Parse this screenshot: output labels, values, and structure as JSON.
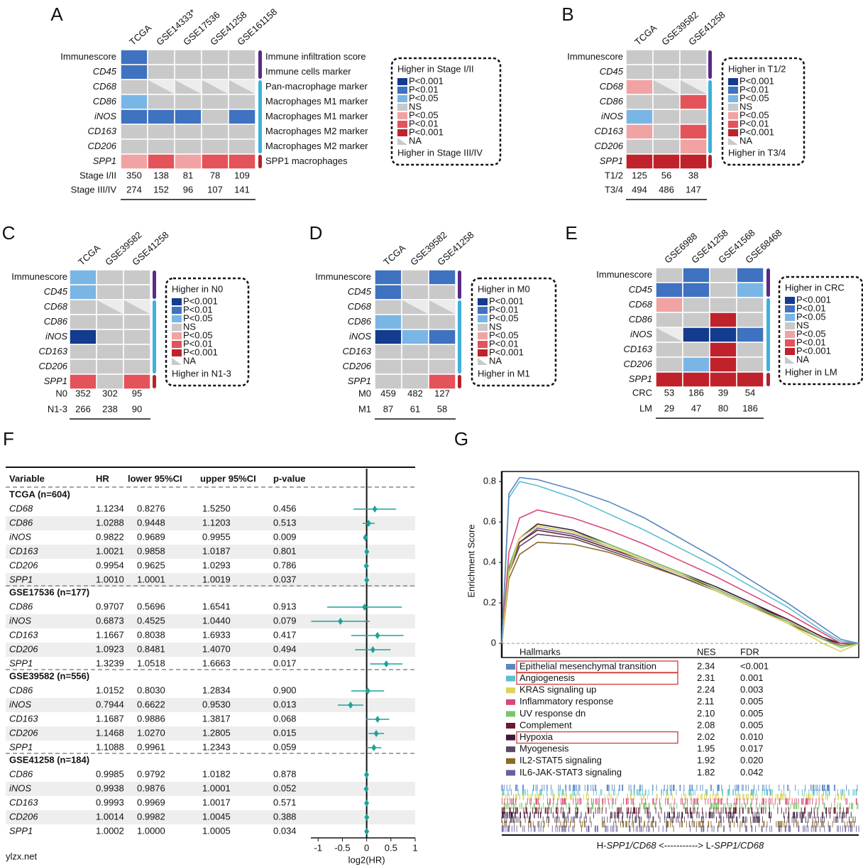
{
  "levels": [
    {
      "label": "P<0.001",
      "color": "#133b8e"
    },
    {
      "label": "P<0.01",
      "color": "#3f72c0"
    },
    {
      "label": "P<0.05",
      "color": "#79b6e6"
    },
    {
      "label": "NS",
      "color": "#c9c9c9"
    },
    {
      "label": "P<0.05",
      "color": "#f1a3a3"
    },
    {
      "label": "P<0.01",
      "color": "#e4525a"
    },
    {
      "label": "P<0.001",
      "color": "#c0222b"
    },
    {
      "label": "NA",
      "color": "#c9c9c9",
      "triangle": true
    }
  ],
  "heatmaps": [
    {
      "letter": "A",
      "columns": [
        "TCGA",
        "GSE14333*",
        "GSE17536",
        "GSE41258",
        "GSE161158"
      ],
      "rows": [
        {
          "label": "Immunescore",
          "italic": false
        },
        {
          "label": "CD45"
        },
        {
          "label": "CD68"
        },
        {
          "label": "CD86"
        },
        {
          "label": "iNOS",
          "color": "#1f4e9a"
        },
        {
          "label": "CD163"
        },
        {
          "label": "CD206"
        },
        {
          "label": "SPP1",
          "color": "#b5222a"
        }
      ],
      "cells": [
        [
          1,
          3,
          3,
          3,
          3
        ],
        [
          1,
          3,
          3,
          3,
          3
        ],
        [
          3,
          7,
          7,
          7,
          7
        ],
        [
          2,
          3,
          3,
          3,
          3
        ],
        [
          1,
          1,
          1,
          3,
          1
        ],
        [
          3,
          3,
          3,
          3,
          3
        ],
        [
          3,
          3,
          3,
          3,
          3
        ],
        [
          4,
          5,
          4,
          5,
          5
        ]
      ],
      "annotations": [
        {
          "text": "Immune infiltration score"
        },
        {
          "text": "Immune cells marker"
        },
        {
          "text": "Pan-macrophage marker"
        },
        {
          "text": "Macrophages M1 marker"
        },
        {
          "text": "Macrophages M1 marker",
          "color": "#1f4e9a"
        },
        {
          "text": "Macrophages M2 marker"
        },
        {
          "text": "Macrophages M2 marker"
        },
        {
          "text": "SPP1 macrophages",
          "color": "#b5222a"
        }
      ],
      "legend_top": "Higher in Stage I/II",
      "legend_bottom": "Higher in Stage III/IV",
      "groups": [
        {
          "label": "Stage I/II",
          "color": "#1f4e9a",
          "counts": [
            350,
            138,
            81,
            78,
            109
          ]
        },
        {
          "label": "Stage III/IV",
          "color": "#b5222a",
          "counts": [
            274,
            152,
            96,
            107,
            141
          ]
        }
      ]
    },
    {
      "letter": "B",
      "columns": [
        "TCGA",
        "GSE39582",
        "GSE41258"
      ],
      "rows": [
        {
          "label": "Immunescore",
          "italic": false
        },
        {
          "label": "CD45"
        },
        {
          "label": "CD68",
          "color": "#b5222a"
        },
        {
          "label": "CD86"
        },
        {
          "label": "iNOS"
        },
        {
          "label": "CD163",
          "color": "#b5222a"
        },
        {
          "label": "CD206"
        },
        {
          "label": "SPP1",
          "color": "#b5222a"
        }
      ],
      "cells": [
        [
          3,
          3,
          3
        ],
        [
          3,
          3,
          3
        ],
        [
          4,
          7,
          7
        ],
        [
          3,
          3,
          5
        ],
        [
          2,
          3,
          3
        ],
        [
          4,
          3,
          5
        ],
        [
          3,
          3,
          4
        ],
        [
          6,
          6,
          6
        ]
      ],
      "legend_top": "Higher in T1/2",
      "legend_bottom": "Higher in T3/4",
      "groups": [
        {
          "label": "T1/2",
          "color": "#1f4e9a",
          "counts": [
            125,
            56,
            38
          ]
        },
        {
          "label": "T3/4",
          "color": "#b5222a",
          "counts": [
            494,
            486,
            147
          ]
        }
      ]
    },
    {
      "letter": "C",
      "columns": [
        "TCGA",
        "GSE39582",
        "GSE41258"
      ],
      "rows": [
        {
          "label": "Immunescore",
          "italic": false
        },
        {
          "label": "CD45"
        },
        {
          "label": "CD68"
        },
        {
          "label": "CD86"
        },
        {
          "label": "iNOS"
        },
        {
          "label": "CD163"
        },
        {
          "label": "CD206"
        },
        {
          "label": "SPP1",
          "color": "#b5222a"
        }
      ],
      "cells": [
        [
          2,
          3,
          3
        ],
        [
          2,
          3,
          3
        ],
        [
          3,
          7,
          7
        ],
        [
          3,
          3,
          3
        ],
        [
          0,
          3,
          3
        ],
        [
          3,
          3,
          3
        ],
        [
          3,
          3,
          3
        ],
        [
          5,
          3,
          5
        ]
      ],
      "legend_top": "Higher in N0",
      "legend_bottom": "Higher in N1-3",
      "groups": [
        {
          "label": "N0",
          "color": "#1f4e9a",
          "counts": [
            352,
            302,
            95
          ]
        },
        {
          "label": "N1-3",
          "color": "#b5222a",
          "counts": [
            266,
            238,
            90
          ]
        }
      ]
    },
    {
      "letter": "D",
      "columns": [
        "TCGA",
        "GSE39582",
        "GSE41258"
      ],
      "rows": [
        {
          "label": "Immunescore",
          "italic": false,
          "color": "#1f4e9a"
        },
        {
          "label": "CD45"
        },
        {
          "label": "CD68"
        },
        {
          "label": "CD86"
        },
        {
          "label": "iNOS",
          "color": "#1f4e9a"
        },
        {
          "label": "CD163"
        },
        {
          "label": "CD206"
        },
        {
          "label": "SPP1"
        }
      ],
      "cells": [
        [
          1,
          3,
          1
        ],
        [
          1,
          3,
          3
        ],
        [
          3,
          7,
          7
        ],
        [
          2,
          3,
          3
        ],
        [
          0,
          2,
          1
        ],
        [
          3,
          3,
          3
        ],
        [
          3,
          3,
          3
        ],
        [
          3,
          3,
          5
        ]
      ],
      "legend_top": "Higher in M0",
      "legend_bottom": "Higher in M1",
      "groups": [
        {
          "label": "M0",
          "color": "#1f4e9a",
          "counts": [
            459,
            482,
            127
          ]
        },
        {
          "label": "M1",
          "color": "#b5222a",
          "counts": [
            87,
            61,
            58
          ]
        }
      ]
    },
    {
      "letter": "E",
      "columns": [
        "GSE6988",
        "GSE41258",
        "GSE41568",
        "GSE68468"
      ],
      "rows": [
        {
          "label": "Immunescore",
          "italic": false
        },
        {
          "label": "CD45",
          "color": "#1f4e9a"
        },
        {
          "label": "CD68"
        },
        {
          "label": "CD86"
        },
        {
          "label": "iNOS"
        },
        {
          "label": "CD163"
        },
        {
          "label": "CD206"
        },
        {
          "label": "SPP1",
          "color": "#b5222a"
        }
      ],
      "cells": [
        [
          3,
          1,
          3,
          1
        ],
        [
          1,
          1,
          3,
          2
        ],
        [
          4,
          3,
          3,
          3
        ],
        [
          3,
          3,
          6,
          3
        ],
        [
          7,
          0,
          0,
          1
        ],
        [
          3,
          3,
          6,
          3
        ],
        [
          3,
          2,
          6,
          3
        ],
        [
          6,
          6,
          6,
          6
        ]
      ],
      "legend_top": "Higher in CRC",
      "legend_bottom": "Higher in LM",
      "groups": [
        {
          "label": "CRC",
          "color": "#1f4e9a",
          "counts": [
            53,
            186,
            39,
            54
          ]
        },
        {
          "label": "LM",
          "color": "#b5222a",
          "counts": [
            29,
            47,
            80,
            186
          ]
        }
      ]
    }
  ],
  "forest": {
    "letter": "F",
    "headers": [
      "Variable",
      "HR",
      "lower 95%CI",
      "upper 95%CI",
      "p-value"
    ],
    "color": "#1aa39a",
    "groups": [
      {
        "name": "TCGA (n=604)",
        "rows": [
          {
            "variable": "CD68",
            "hr": "1.1234",
            "lower": "0.8276",
            "upper": "1.5250",
            "p": "0.456"
          },
          {
            "variable": "CD86",
            "hr": "1.0288",
            "lower": "0.9448",
            "upper": "1.1203",
            "p": "0.513"
          },
          {
            "variable": "iNOS",
            "color": "#1f4e9a",
            "hr": "0.9822",
            "lower": "0.9689",
            "upper": "0.9955",
            "p": "0.009"
          },
          {
            "variable": "CD163",
            "hr": "1.0021",
            "lower": "0.9858",
            "upper": "1.0187",
            "p": "0.801"
          },
          {
            "variable": "CD206",
            "hr": "0.9954",
            "lower": "0.9625",
            "upper": "1.0293",
            "p": "0.786"
          },
          {
            "variable": "SPP1",
            "color": "#b5222a",
            "hr": "1.0010",
            "lower": "1.0001",
            "upper": "1.0019",
            "p": "0.037"
          }
        ]
      },
      {
        "name": "GSE17536 (n=177)",
        "rows": [
          {
            "variable": "CD86",
            "hr": "0.9707",
            "lower": "0.5696",
            "upper": "1.6541",
            "p": "0.913"
          },
          {
            "variable": "iNOS",
            "hr": "0.6873",
            "lower": "0.4525",
            "upper": "1.0440",
            "p": "0.079"
          },
          {
            "variable": "CD163",
            "hr": "1.1667",
            "lower": "0.8038",
            "upper": "1.6933",
            "p": "0.417"
          },
          {
            "variable": "CD206",
            "hr": "1.0923",
            "lower": "0.8481",
            "upper": "1.4070",
            "p": "0.494"
          },
          {
            "variable": "SPP1",
            "color": "#b5222a",
            "hr": "1.3239",
            "lower": "1.0518",
            "upper": "1.6663",
            "p": "0.017"
          }
        ]
      },
      {
        "name": "GSE39582 (n=556)",
        "rows": [
          {
            "variable": "CD86",
            "hr": "1.0152",
            "lower": "0.8030",
            "upper": "1.2834",
            "p": "0.900"
          },
          {
            "variable": "iNOS",
            "color": "#1f4e9a",
            "hr": "0.7944",
            "lower": "0.6622",
            "upper": "0.9530",
            "p": "0.013"
          },
          {
            "variable": "CD163",
            "hr": "1.1687",
            "lower": "0.9886",
            "upper": "1.3817",
            "p": "0.068"
          },
          {
            "variable": "CD206",
            "color": "#b5222a",
            "hr": "1.1468",
            "lower": "1.0270",
            "upper": "1.2805",
            "p": "0.015"
          },
          {
            "variable": "SPP1",
            "hr": "1.1088",
            "lower": "0.9961",
            "upper": "1.2343",
            "p": "0.059"
          }
        ]
      },
      {
        "name": "GSE41258 (n=184)",
        "rows": [
          {
            "variable": "CD86",
            "hr": "0.9985",
            "lower": "0.9792",
            "upper": "1.0182",
            "p": "0.878"
          },
          {
            "variable": "iNOS",
            "hr": "0.9938",
            "lower": "0.9876",
            "upper": "1.0001",
            "p": "0.052"
          },
          {
            "variable": "CD163",
            "hr": "0.9993",
            "lower": "0.9969",
            "upper": "1.0017",
            "p": "0.571"
          },
          {
            "variable": "CD206",
            "hr": "1.0014",
            "lower": "0.9982",
            "upper": "1.0045",
            "p": "0.388"
          },
          {
            "variable": "SPP1",
            "color": "#b5222a",
            "hr": "1.0002",
            "lower": "1.0000",
            "upper": "1.0005",
            "p": "0.034"
          }
        ]
      }
    ],
    "xlabel": "log2(HR)",
    "xlim": [
      -1.15,
      1
    ],
    "xticks": [
      -1,
      -0.5,
      0,
      0.5,
      1
    ]
  },
  "gsea": {
    "letter": "G",
    "type": "line",
    "ylabel": "Enrichment Score",
    "ylim": [
      -0.07,
      0.85
    ],
    "yticks": [
      0.0,
      0.2,
      0.4,
      0.6,
      0.8
    ],
    "x": [
      0,
      0.02,
      0.05,
      0.1,
      0.2,
      0.3,
      0.4,
      0.5,
      0.6,
      0.7,
      0.8,
      0.9,
      0.95,
      1
    ],
    "headers": [
      "Hallmarks",
      "NES",
      "FDR"
    ],
    "series": [
      {
        "name": "Epithelial mesenchymal transition",
        "color": "#5b87c3",
        "nes": "2.34",
        "fdr": "<0.001",
        "boxed": true,
        "values": [
          0,
          0.74,
          0.82,
          0.81,
          0.76,
          0.7,
          0.62,
          0.52,
          0.42,
          0.31,
          0.2,
          0.08,
          0.02,
          0
        ]
      },
      {
        "name": "Angiogenesis",
        "color": "#5bc0d0",
        "nes": "2.31",
        "fdr": "0.001",
        "boxed": true,
        "values": [
          0,
          0.72,
          0.8,
          0.78,
          0.72,
          0.64,
          0.56,
          0.47,
          0.38,
          0.28,
          0.18,
          0.06,
          0.01,
          0
        ]
      },
      {
        "name": "KRAS signaling up",
        "color": "#d9d45a",
        "nes": "2.24",
        "fdr": "0.003",
        "values": [
          0,
          0.35,
          0.52,
          0.58,
          0.55,
          0.48,
          0.41,
          0.34,
          0.26,
          0.18,
          0.1,
          0,
          -0.04,
          0
        ]
      },
      {
        "name": "Inflammatory response",
        "color": "#d8477a",
        "nes": "2.11",
        "fdr": "0.005",
        "values": [
          0,
          0.45,
          0.62,
          0.66,
          0.62,
          0.56,
          0.49,
          0.41,
          0.33,
          0.24,
          0.15,
          0.05,
          0,
          0
        ]
      },
      {
        "name": "UV response dn",
        "color": "#7cc46a",
        "nes": "2.10",
        "fdr": "0.005",
        "values": [
          0,
          0.38,
          0.52,
          0.58,
          0.55,
          0.49,
          0.42,
          0.35,
          0.27,
          0.19,
          0.11,
          0.02,
          -0.02,
          0
        ]
      },
      {
        "name": "Complement",
        "color": "#6b1b2e",
        "nes": "2.08",
        "fdr": "0.005",
        "values": [
          0,
          0.36,
          0.5,
          0.56,
          0.53,
          0.47,
          0.41,
          0.34,
          0.27,
          0.19,
          0.12,
          0.03,
          0,
          0
        ]
      },
      {
        "name": "Hypoxia",
        "color": "#3b1a3a",
        "nes": "2.02",
        "fdr": "0.010",
        "boxed": true,
        "values": [
          0,
          0.38,
          0.52,
          0.59,
          0.56,
          0.49,
          0.42,
          0.35,
          0.28,
          0.2,
          0.12,
          0.03,
          0,
          0
        ]
      },
      {
        "name": "Myogenesis",
        "color": "#5a4a64",
        "nes": "1.95",
        "fdr": "0.017",
        "values": [
          0,
          0.35,
          0.48,
          0.54,
          0.52,
          0.46,
          0.4,
          0.33,
          0.26,
          0.18,
          0.11,
          0.02,
          0,
          0
        ]
      },
      {
        "name": "IL2-STAT5 signaling",
        "color": "#8c6a2a",
        "nes": "1.92",
        "fdr": "0.020",
        "values": [
          0,
          0.32,
          0.44,
          0.5,
          0.49,
          0.45,
          0.39,
          0.33,
          0.26,
          0.18,
          0.1,
          0.02,
          -0.01,
          0
        ]
      },
      {
        "name": "IL6-JAK-STAT3 signaling",
        "color": "#6b5fa0",
        "nes": "1.82",
        "fdr": "0.042",
        "values": [
          0,
          0.36,
          0.5,
          0.57,
          0.54,
          0.48,
          0.41,
          0.34,
          0.27,
          0.19,
          0.11,
          0.02,
          0,
          0
        ]
      }
    ],
    "xlabel": [
      {
        "text": "H-"
      },
      {
        "text": "SPP1/CD68",
        "italic": true
      },
      {
        "text": " <-----------> L-"
      },
      {
        "text": "SPP1/CD68",
        "italic": true
      }
    ]
  },
  "watermark": "ylzx.net"
}
